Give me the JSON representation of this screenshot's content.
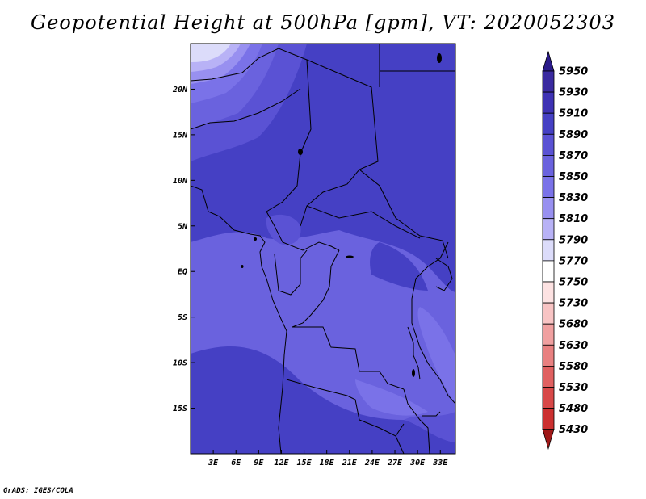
{
  "title": "Geopotential Height at 500hPa [gpm], VT: 2020052303",
  "footer": "GrADS: IGES/COLA",
  "map": {
    "lon_range": [
      0,
      35
    ],
    "lat_range": [
      -20,
      25
    ],
    "y_ticks": [
      {
        "lat": 20,
        "label": "20N"
      },
      {
        "lat": 15,
        "label": "15N"
      },
      {
        "lat": 10,
        "label": "10N"
      },
      {
        "lat": 5,
        "label": "5N"
      },
      {
        "lat": 0,
        "label": "EQ"
      },
      {
        "lat": -5,
        "label": "5S"
      },
      {
        "lat": -10,
        "label": "10S"
      },
      {
        "lat": -15,
        "label": "15S"
      }
    ],
    "x_ticks": [
      {
        "lon": 3,
        "label": "3E"
      },
      {
        "lon": 6,
        "label": "6E"
      },
      {
        "lon": 9,
        "label": "9E"
      },
      {
        "lon": 12,
        "label": "12E"
      },
      {
        "lon": 15,
        "label": "15E"
      },
      {
        "lon": 18,
        "label": "18E"
      },
      {
        "lon": 21,
        "label": "21E"
      },
      {
        "lon": 24,
        "label": "24E"
      },
      {
        "lon": 27,
        "label": "27E"
      },
      {
        "lon": 30,
        "label": "30E"
      },
      {
        "lon": 33,
        "label": "33E"
      }
    ]
  },
  "colorbar": {
    "levels": [
      "5950",
      "5930",
      "5910",
      "5890",
      "5870",
      "5850",
      "5830",
      "5810",
      "5790",
      "5770",
      "5750",
      "5730",
      "5680",
      "5630",
      "5580",
      "5530",
      "5480",
      "5430"
    ],
    "colors": [
      "#3a2aa0",
      "#3e32b4",
      "#4540c4",
      "#5a52d4",
      "#6a62de",
      "#7a72e8",
      "#9890f0",
      "#b8b2f6",
      "#dcdcfa",
      "#ffffff",
      "#fde2e2",
      "#f8c4c4",
      "#f0a0a0",
      "#e88080",
      "#e06060",
      "#d84848",
      "#cc3030",
      "#b82020"
    ],
    "top_arrow_color": "#2a1a8a",
    "bottom_arrow_color": "#a01818"
  }
}
